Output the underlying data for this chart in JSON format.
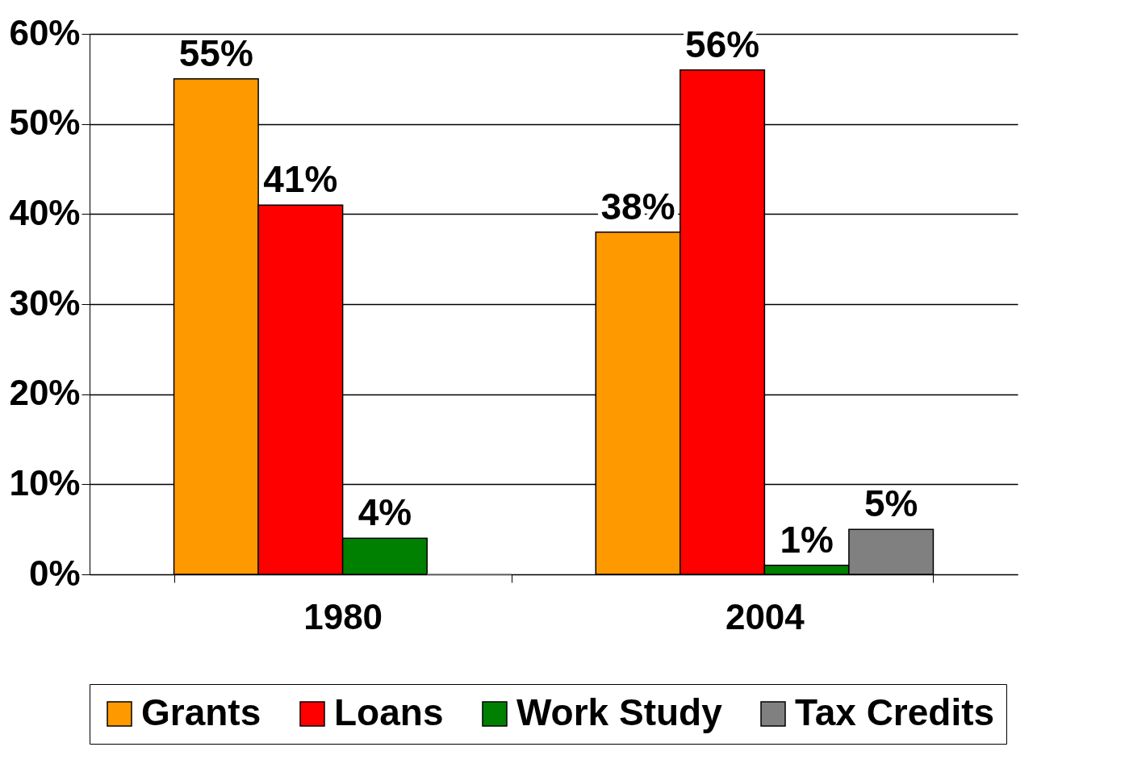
{
  "chart_data": {
    "type": "bar",
    "categories": [
      "1980",
      "2004"
    ],
    "series": [
      {
        "name": "Grants",
        "color": "#ff9900",
        "values": [
          55,
          38
        ],
        "value_labels": [
          "55%",
          "38%"
        ]
      },
      {
        "name": "Loans",
        "color": "#ff0000",
        "values": [
          41,
          56
        ],
        "value_labels": [
          "41%",
          "56%"
        ]
      },
      {
        "name": "Work Study",
        "color": "#008000",
        "values": [
          4,
          1
        ],
        "value_labels": [
          "4%",
          "1%"
        ]
      },
      {
        "name": "Tax Credits",
        "color": "#808080",
        "values": [
          0,
          5
        ],
        "value_labels": [
          null,
          "5%"
        ]
      }
    ],
    "ylim": [
      0,
      60
    ],
    "yticks": [
      {
        "value": 0,
        "label": "0%"
      },
      {
        "value": 10,
        "label": "10%"
      },
      {
        "value": 20,
        "label": "20%"
      },
      {
        "value": 30,
        "label": "30%"
      },
      {
        "value": 40,
        "label": "40%"
      },
      {
        "value": 50,
        "label": "50%"
      },
      {
        "value": 60,
        "label": "60%"
      }
    ],
    "grid": "y",
    "legend": "bottom"
  }
}
